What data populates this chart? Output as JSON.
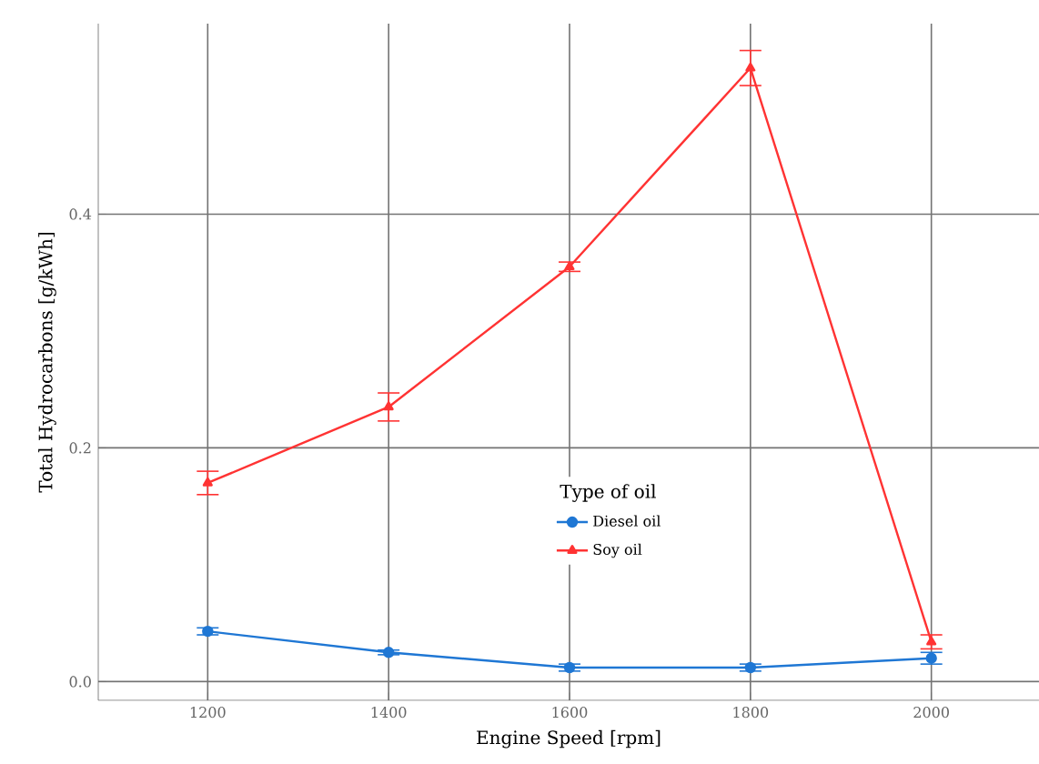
{
  "chart_data": {
    "type": "line",
    "xlabel": "Engine Speed [rpm]",
    "ylabel": "Total Hydrocarbons [g/kWh]",
    "legend_title": "Type of oil",
    "x": [
      1200,
      1400,
      1600,
      1800,
      2000
    ],
    "series": [
      {
        "name": "Diesel oil",
        "color": "#1f77d4",
        "marker": "circle",
        "values": [
          0.043,
          0.025,
          0.012,
          0.012,
          0.02
        ],
        "errors": [
          0.003,
          0.002,
          0.003,
          0.003,
          0.005
        ]
      },
      {
        "name": "Soy oil",
        "color": "#ff3333",
        "marker": "triangle",
        "values": [
          0.17,
          0.235,
          0.355,
          0.525,
          0.034
        ],
        "errors": [
          0.01,
          0.012,
          0.004,
          0.015,
          0.006
        ]
      }
    ],
    "xlim": [
      1079,
      2119
    ],
    "ylim": [
      -0.016,
      0.563
    ],
    "xticks": [
      1200,
      1400,
      1600,
      1800,
      2000
    ],
    "yticks": [
      {
        "value": 0,
        "label": "0.0"
      },
      {
        "value": 0.2,
        "label": "0.2"
      },
      {
        "value": 0.4,
        "label": "0.4"
      }
    ],
    "grid": true,
    "legend": "center",
    "line_style": "solid"
  }
}
